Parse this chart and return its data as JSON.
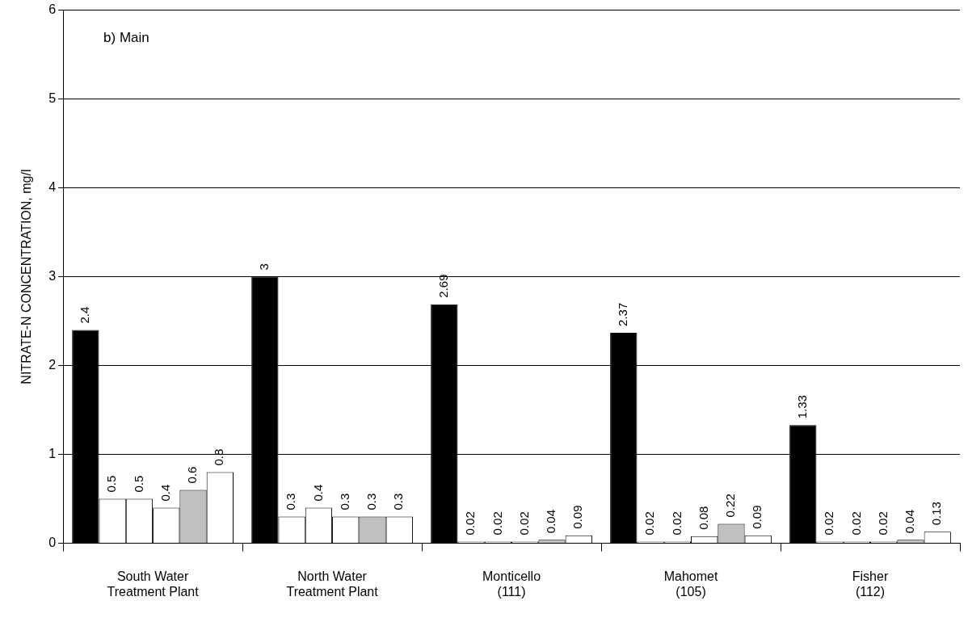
{
  "chart_data": {
    "type": "bar",
    "ylabel": "NITRATE-N CONCENTRATION, mg/l",
    "annotations": [
      "b) Main"
    ],
    "categories": [
      "South Water\nTreatment Plant",
      "North Water\nTreatment Plant",
      "Monticello\n(111)",
      "Mahomet\n(105)",
      "Fisher\n(112)"
    ],
    "series": [
      {
        "color": "#000000",
        "values": [
          2.4,
          3,
          2.69,
          2.37,
          1.33
        ]
      },
      {
        "color": "#ffffff",
        "values": [
          0.5,
          0.3,
          0.02,
          0.02,
          0.02
        ]
      },
      {
        "color": "#ffffff",
        "values": [
          0.5,
          0.4,
          0.02,
          0.02,
          0.02
        ]
      },
      {
        "color": "#ffffff",
        "values": [
          0.4,
          0.3,
          0.02,
          0.08,
          0.02
        ]
      },
      {
        "color": "#c0c0c0",
        "values": [
          0.6,
          0.3,
          0.04,
          0.22,
          0.04
        ]
      },
      {
        "color": "#ffffff",
        "values": [
          0.8,
          0.3,
          0.09,
          0.09,
          0.13
        ]
      }
    ],
    "ylim": [
      0,
      6
    ],
    "yticks": [
      0,
      1,
      2,
      3,
      4,
      5,
      6
    ],
    "grid": "y",
    "data_labels": true,
    "legend": false
  }
}
